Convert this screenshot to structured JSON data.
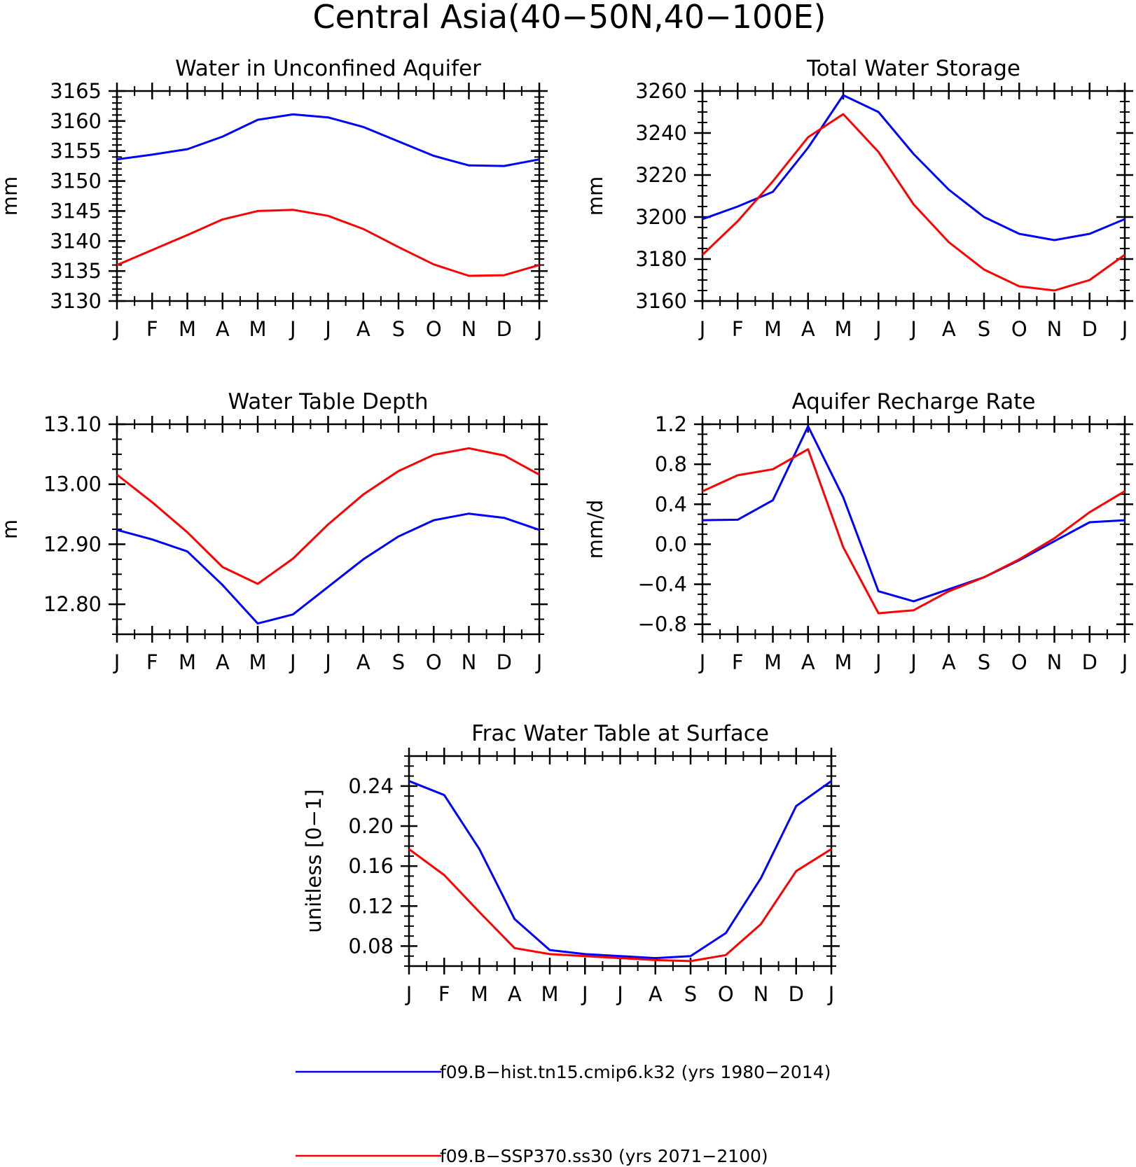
{
  "page": {
    "title": "Central Asia(40−50N,40−100E)"
  },
  "legend": [
    {
      "label": "f09.B−hist.tn15.cmip6.k32 (yrs 1980−2014)",
      "color": "#0000ff"
    },
    {
      "label": "f09.B−SSP370.ss30 (yrs 2071−2100)",
      "color": "#ff0000"
    }
  ],
  "chart_data": [
    {
      "type": "line",
      "title": "Water in Unconfined Aquifer",
      "ylabel": "mm",
      "xlabel": "",
      "categories": [
        "J",
        "F",
        "M",
        "A",
        "M",
        "J",
        "J",
        "A",
        "S",
        "O",
        "N",
        "D",
        "J"
      ],
      "ylim": [
        3130,
        3165
      ],
      "yticks": [
        3130,
        3135,
        3140,
        3145,
        3150,
        3155,
        3160,
        3165
      ],
      "ytick_labels": [
        "3130",
        "3135",
        "3140",
        "3145",
        "3150",
        "3155",
        "3160",
        "3165"
      ],
      "minor_step": 1,
      "grid": false,
      "series": [
        {
          "color": "#0000ff",
          "values": [
            3153.6,
            3154.4,
            3155.3,
            3157.4,
            3160.2,
            3161.1,
            3160.6,
            3159.0,
            3156.6,
            3154.2,
            3152.6,
            3152.5,
            3153.6
          ]
        },
        {
          "color": "#ff0000",
          "values": [
            3136.0,
            3138.5,
            3141.0,
            3143.6,
            3145.0,
            3145.2,
            3144.2,
            3142.0,
            3139.0,
            3136.1,
            3134.2,
            3134.3,
            3136.0
          ]
        }
      ]
    },
    {
      "type": "line",
      "title": "Total Water Storage",
      "ylabel": "mm",
      "xlabel": "",
      "categories": [
        "J",
        "F",
        "M",
        "A",
        "M",
        "J",
        "J",
        "A",
        "S",
        "O",
        "N",
        "D",
        "J"
      ],
      "ylim": [
        3160,
        3260
      ],
      "yticks": [
        3160,
        3180,
        3200,
        3220,
        3240,
        3260
      ],
      "ytick_labels": [
        "3160",
        "3180",
        "3200",
        "3220",
        "3240",
        "3260"
      ],
      "minor_step": 5,
      "grid": false,
      "series": [
        {
          "color": "#0000ff",
          "values": [
            3199.0,
            3205.0,
            3212.0,
            3233.0,
            3258.0,
            3250.0,
            3230.0,
            3213.0,
            3200.0,
            3192.0,
            3189.0,
            3192.0,
            3199.0
          ]
        },
        {
          "color": "#ff0000",
          "values": [
            3182.0,
            3198.0,
            3217.0,
            3238.0,
            3249.0,
            3231.0,
            3206.0,
            3188.0,
            3175.0,
            3167.0,
            3165.0,
            3170.0,
            3182.0
          ]
        }
      ]
    },
    {
      "type": "line",
      "title": "Water Table Depth",
      "ylabel": "m",
      "xlabel": "",
      "categories": [
        "J",
        "F",
        "M",
        "A",
        "M",
        "J",
        "J",
        "A",
        "S",
        "O",
        "N",
        "D",
        "J"
      ],
      "ylim": [
        12.75,
        13.1
      ],
      "yticks": [
        12.8,
        12.9,
        13.0,
        13.1
      ],
      "ytick_labels": [
        "12.80",
        "12.90",
        "13.00",
        "13.10"
      ],
      "minor_step": 0.025,
      "grid": false,
      "series": [
        {
          "color": "#0000ff",
          "values": [
            12.924,
            12.908,
            12.888,
            12.832,
            12.768,
            12.783,
            12.829,
            12.875,
            12.913,
            12.94,
            12.951,
            12.944,
            12.924
          ]
        },
        {
          "color": "#ff0000",
          "values": [
            13.016,
            12.97,
            12.92,
            12.862,
            12.834,
            12.876,
            12.933,
            12.983,
            13.022,
            13.049,
            13.06,
            13.048,
            13.016
          ]
        }
      ]
    },
    {
      "type": "line",
      "title": "Aquifer Recharge Rate",
      "ylabel": "mm/d",
      "xlabel": "",
      "categories": [
        "J",
        "F",
        "M",
        "A",
        "M",
        "J",
        "J",
        "A",
        "S",
        "O",
        "N",
        "D",
        "J"
      ],
      "ylim": [
        -0.9,
        1.2
      ],
      "yticks": [
        -0.8,
        -0.4,
        0.0,
        0.4,
        0.8,
        1.2
      ],
      "ytick_labels": [
        "−0.8",
        "−0.4",
        "0.0",
        "0.4",
        "0.8",
        "1.2"
      ],
      "minor_step": 0.1,
      "grid": false,
      "series": [
        {
          "color": "#0000ff",
          "values": [
            0.24,
            0.245,
            0.44,
            1.18,
            0.47,
            -0.47,
            -0.57,
            -0.45,
            -0.33,
            -0.16,
            0.03,
            0.22,
            0.24
          ]
        },
        {
          "color": "#ff0000",
          "values": [
            0.53,
            0.69,
            0.75,
            0.95,
            -0.03,
            -0.69,
            -0.66,
            -0.47,
            -0.33,
            -0.15,
            0.06,
            0.32,
            0.53
          ]
        }
      ]
    },
    {
      "type": "line",
      "title": "Frac Water Table at Surface",
      "ylabel": "unitless [0−1]",
      "xlabel": "",
      "categories": [
        "J",
        "F",
        "M",
        "A",
        "M",
        "J",
        "J",
        "A",
        "S",
        "O",
        "N",
        "D",
        "J"
      ],
      "ylim": [
        0.06,
        0.27
      ],
      "yticks": [
        0.08,
        0.12,
        0.16,
        0.2,
        0.24
      ],
      "ytick_labels": [
        "0.08",
        "0.12",
        "0.16",
        "0.20",
        "0.24"
      ],
      "minor_step": 0.01,
      "grid": false,
      "series": [
        {
          "color": "#0000ff",
          "values": [
            0.245,
            0.231,
            0.177,
            0.107,
            0.076,
            0.072,
            0.07,
            0.068,
            0.07,
            0.093,
            0.148,
            0.22,
            0.245
          ]
        },
        {
          "color": "#ff0000",
          "values": [
            0.177,
            0.151,
            0.114,
            0.078,
            0.072,
            0.07,
            0.068,
            0.066,
            0.065,
            0.071,
            0.102,
            0.155,
            0.177
          ]
        }
      ]
    }
  ]
}
